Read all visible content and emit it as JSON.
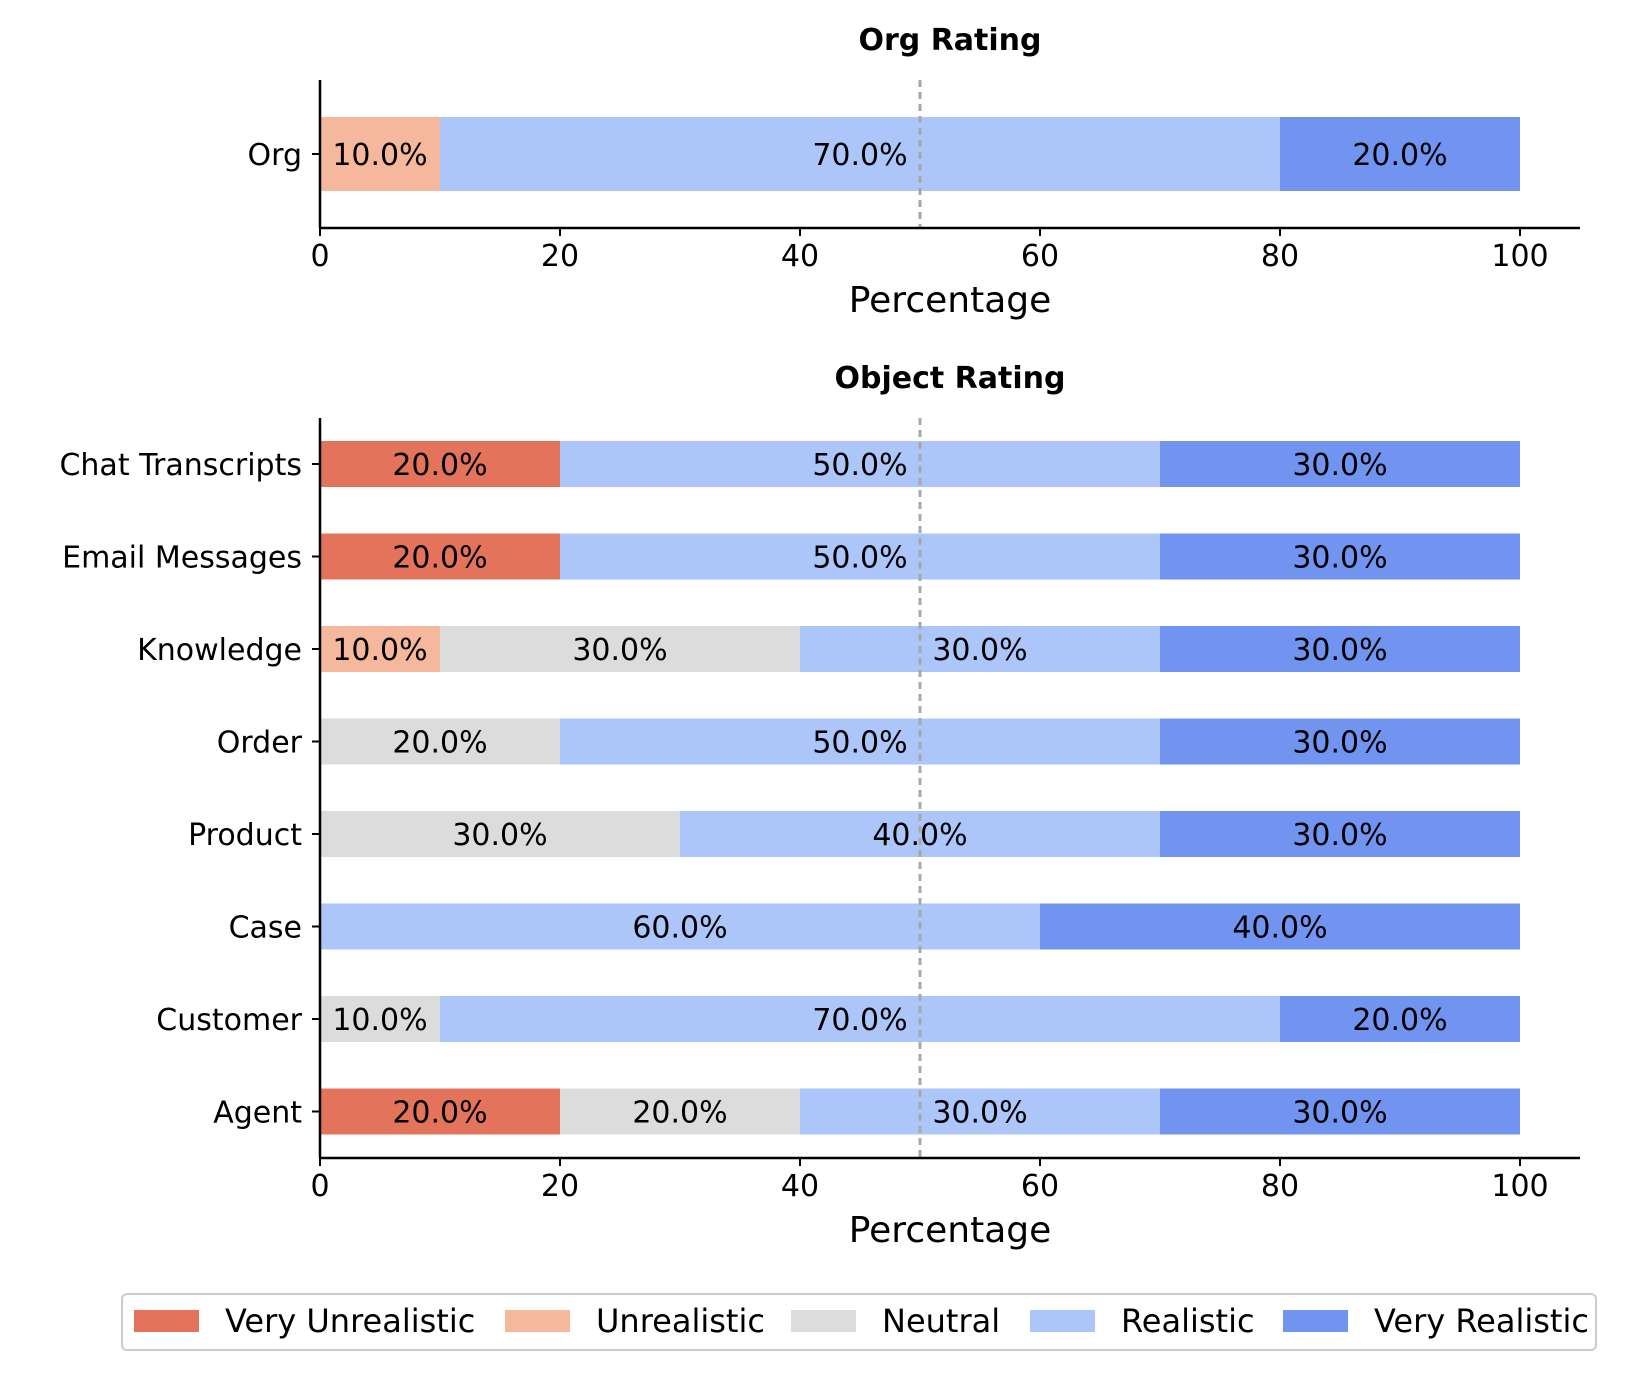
{
  "legend": {
    "items": [
      {
        "label": "Very Unrealistic",
        "color": "#e4735c"
      },
      {
        "label": "Unrealistic",
        "color": "#f6b89c"
      },
      {
        "label": "Neutral",
        "color": "#dcdcdc"
      },
      {
        "label": "Realistic",
        "color": "#adc6fa"
      },
      {
        "label": "Very Realistic",
        "color": "#7194f0"
      }
    ]
  },
  "chart_data": [
    {
      "type": "bar",
      "orientation": "horizontal",
      "stacked": true,
      "title": "Org Rating",
      "xlabel": "Percentage",
      "xlim": [
        0,
        100
      ],
      "xticks": [
        "0",
        "20",
        "40",
        "60",
        "80",
        "100"
      ],
      "reference_line": 50,
      "categories": [
        "Org"
      ],
      "series": [
        {
          "name": "Very Unrealistic",
          "values": [
            0
          ]
        },
        {
          "name": "Unrealistic",
          "values": [
            10
          ]
        },
        {
          "name": "Neutral",
          "values": [
            0
          ]
        },
        {
          "name": "Realistic",
          "values": [
            70
          ]
        },
        {
          "name": "Very Realistic",
          "values": [
            20
          ]
        }
      ]
    },
    {
      "type": "bar",
      "orientation": "horizontal",
      "stacked": true,
      "title": "Object Rating",
      "xlabel": "Percentage",
      "xlim": [
        0,
        100
      ],
      "xticks": [
        "0",
        "20",
        "40",
        "60",
        "80",
        "100"
      ],
      "reference_line": 50,
      "categories": [
        "Chat Transcripts",
        "Email Messages",
        "Knowledge",
        "Order",
        "Product",
        "Case",
        "Customer",
        "Agent"
      ],
      "series": [
        {
          "name": "Very Unrealistic",
          "values": [
            20,
            20,
            0,
            0,
            0,
            0,
            0,
            20
          ]
        },
        {
          "name": "Unrealistic",
          "values": [
            0,
            0,
            10,
            0,
            0,
            0,
            0,
            0
          ]
        },
        {
          "name": "Neutral",
          "values": [
            0,
            0,
            30,
            20,
            30,
            0,
            10,
            20
          ]
        },
        {
          "name": "Realistic",
          "values": [
            50,
            50,
            30,
            50,
            40,
            60,
            70,
            30
          ]
        },
        {
          "name": "Very Realistic",
          "values": [
            30,
            30,
            30,
            30,
            30,
            40,
            20,
            30
          ]
        }
      ]
    }
  ]
}
